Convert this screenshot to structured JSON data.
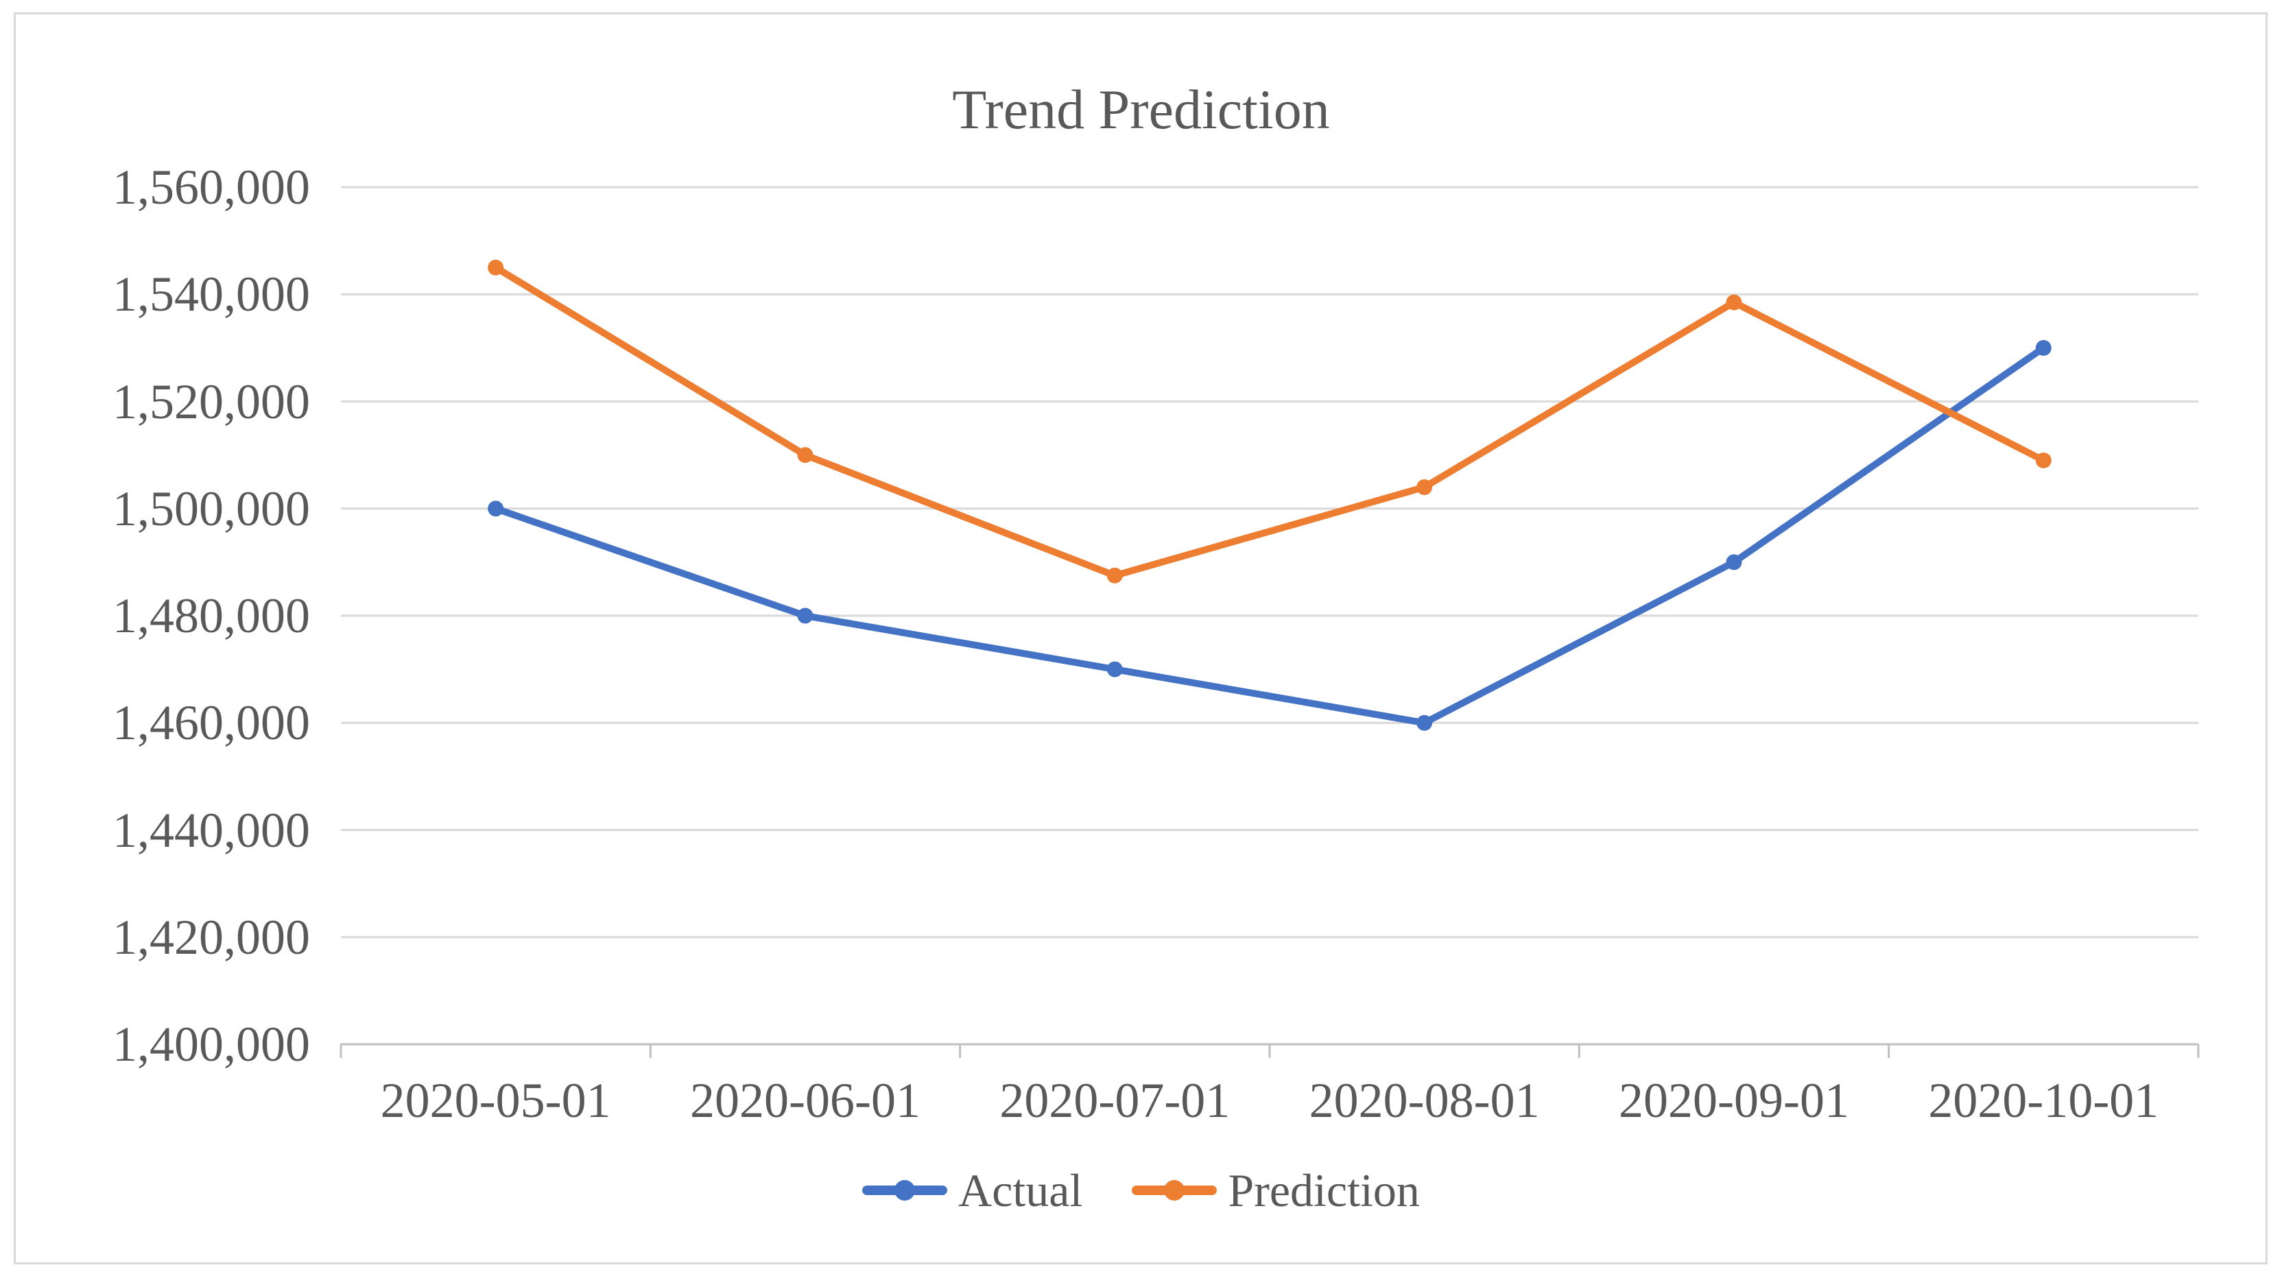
{
  "chart_data": {
    "type": "line",
    "title": "Trend Prediction",
    "categories": [
      "2020-05-01",
      "2020-06-01",
      "2020-07-01",
      "2020-08-01",
      "2020-09-01",
      "2020-10-01"
    ],
    "series": [
      {
        "name": "Actual",
        "color": "#4472C4",
        "values": [
          1500000,
          1480000,
          1470000,
          1460000,
          1490000,
          1530000
        ]
      },
      {
        "name": "Prediction",
        "color": "#ED7D31",
        "values": [
          1545000,
          1510000,
          1487500,
          1504000,
          1538500,
          1509000
        ]
      }
    ],
    "ylim": [
      1400000,
      1560000
    ],
    "y_tick_step": 20000,
    "y_tick_labels": [
      "1,560,000",
      "1,540,000",
      "1,520,000",
      "1,500,000",
      "1,480,000",
      "1,460,000",
      "1,440,000",
      "1,420,000",
      "1,400,000"
    ],
    "xlabel": "",
    "ylabel": "",
    "grid": "horizontal",
    "legend_position": "bottom",
    "marker": "circle",
    "colors": {
      "text": "#595959",
      "gridline": "#D9D9D9",
      "axis": "#BFBFBF",
      "border": "#D9D9D9",
      "background": "#FFFFFF"
    }
  }
}
